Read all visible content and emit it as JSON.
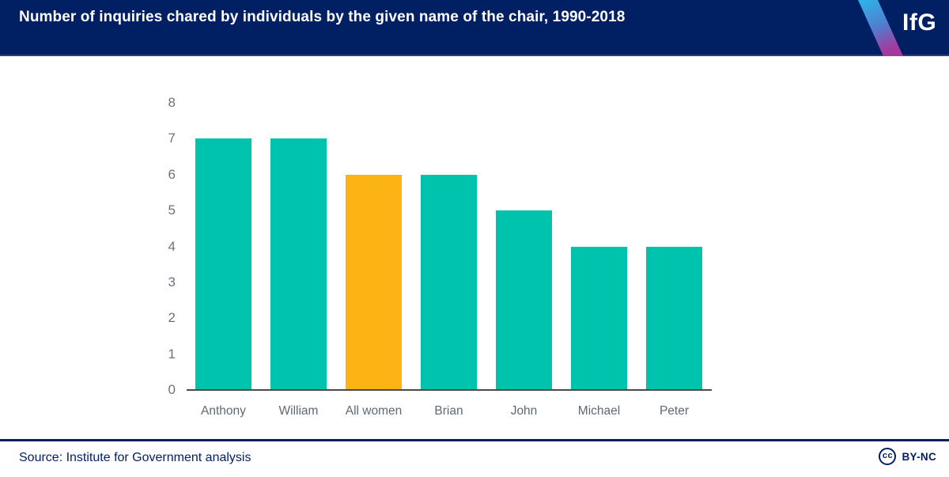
{
  "header": {
    "title": "Number of inquiries chared by individuals by the given name of the chair, 1990-2018",
    "logo_text": "IfG"
  },
  "chart_data": {
    "type": "bar",
    "categories": [
      "Anthony",
      "William",
      "All women",
      "Brian",
      "John",
      "Michael",
      "Peter"
    ],
    "values": [
      7,
      7,
      6,
      6,
      5,
      4,
      4
    ],
    "bar_colors": [
      "teal",
      "teal",
      "orange",
      "teal",
      "teal",
      "teal",
      "teal"
    ],
    "highlighted_category": "All women",
    "title": "Number of inquiries chared by individuals by the given name of the chair, 1990-2018",
    "xlabel": "",
    "ylabel": "",
    "ylim": [
      0,
      8
    ],
    "y_ticks": [
      0,
      1,
      2,
      3,
      4,
      5,
      6,
      7,
      8
    ],
    "grid": false,
    "legend": false
  },
  "colors": {
    "navy": "#011F63",
    "teal": "#00C3AD",
    "orange": "#FBB414",
    "axis_gray": "#4a4a4a",
    "label_gray": "#5f6973",
    "stripe_top": "#2BB6E9",
    "stripe_bottom": "#A43A9E"
  },
  "footer": {
    "source": "Source: Institute for Government analysis",
    "cc_icon_text": "cc",
    "license_label": "BY-NC"
  }
}
